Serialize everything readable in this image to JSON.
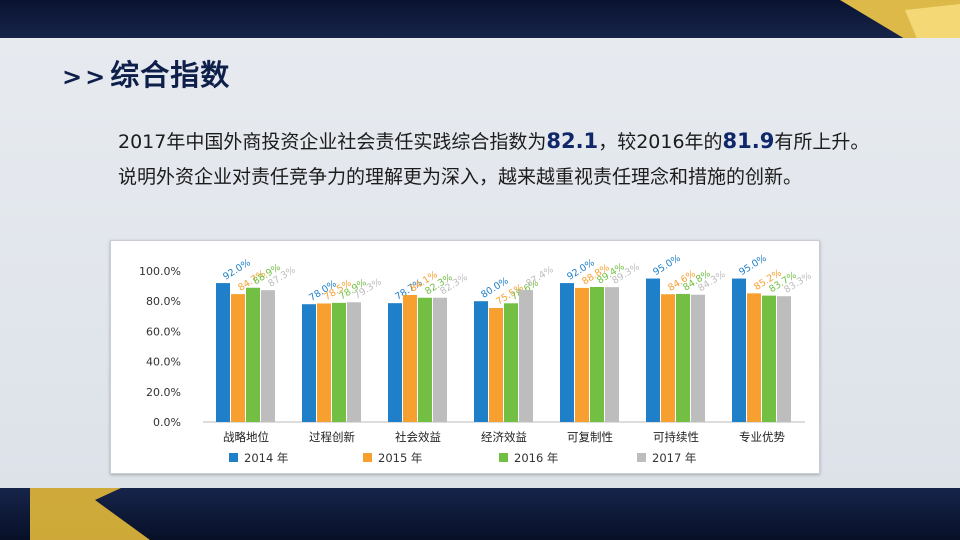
{
  "slide": {
    "title_prefix": ">>",
    "title": "综合指数",
    "para_1": "2017年中国外商投资企业社会责任实践综合指数为",
    "value_2017": "82.1",
    "para_2": "，较2016年的",
    "value_2016": "81.9",
    "para_3": "有所上升。说明外资企业对责任竞争力的理解更为深入，越来越重视责任理念和措施的创新。"
  },
  "colors": {
    "s2014": "#1f7fc8",
    "s2015": "#f7a030",
    "s2016": "#72bf44",
    "s2017": "#bdbdbd",
    "title": "#0e1f4a",
    "accent": "#10286a"
  },
  "chart_data": {
    "type": "bar",
    "categories": [
      "战略地位",
      "过程创新",
      "社会效益",
      "经济效益",
      "可复制性",
      "可持续性",
      "专业优势"
    ],
    "series": [
      {
        "name": "2014 年",
        "values": [
          92.0,
          78.0,
          78.7,
          80.0,
          92.0,
          95.0,
          95.0
        ],
        "labels": [
          "92.0%",
          "78.0%",
          "78.7%",
          "80.0%",
          "92.0%",
          "95.0%",
          "95.0%"
        ]
      },
      {
        "name": "2015 年",
        "values": [
          84.7,
          78.5,
          84.1,
          75.5,
          88.8,
          84.6,
          85.2
        ],
        "labels": [
          "84.7%",
          "78.5%",
          "84.1%",
          "75.5%",
          "88.8%",
          "84.6%",
          "85.2%"
        ]
      },
      {
        "name": "2016 年",
        "values": [
          88.9,
          78.9,
          82.3,
          78.6,
          89.4,
          84.8,
          83.7
        ],
        "labels": [
          "88.9%",
          "78.9%",
          "82.3%",
          "78.6%",
          "89.4%",
          "84.8%",
          "83.7%"
        ]
      },
      {
        "name": "2017 年",
        "values": [
          87.3,
          79.3,
          82.3,
          87.4,
          89.3,
          84.3,
          83.3
        ],
        "labels": [
          "87.3%",
          "79.3%",
          "82.3%",
          "87.4%",
          "89.3%",
          "84.3%",
          "83.3%"
        ]
      }
    ],
    "yticks": [
      "100.0%",
      "80.0%",
      "60.0%",
      "40.0%",
      "20.0%",
      "0.0%"
    ],
    "ylim": [
      0,
      100
    ],
    "legend_position": "bottom",
    "grid": false
  }
}
